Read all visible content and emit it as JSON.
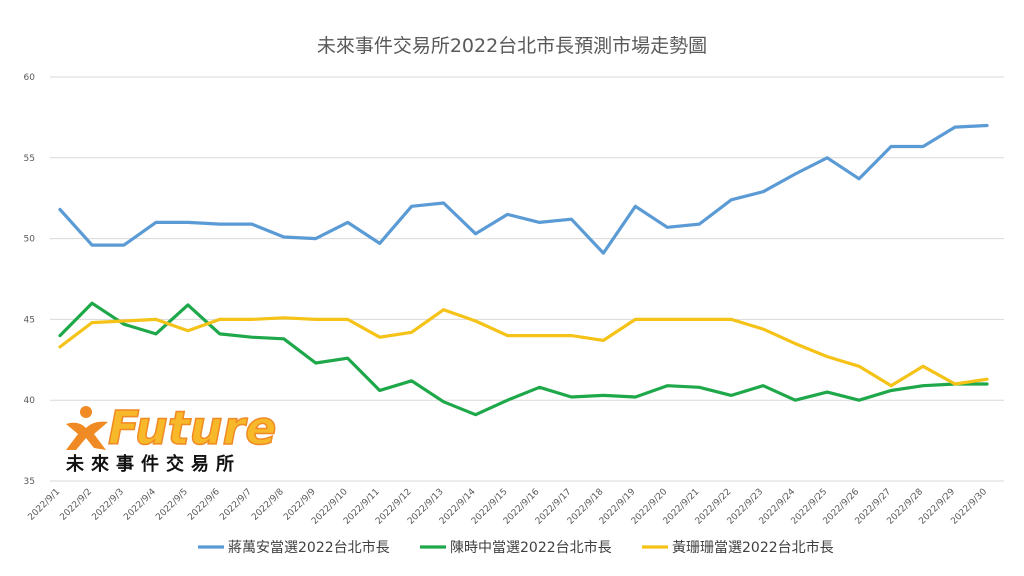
{
  "chart_data": {
    "type": "line",
    "title": "未來事件交易所2022台北市長預測市場走勢圖",
    "xlabel": "",
    "ylabel": "",
    "ylim": [
      35,
      60
    ],
    "yticks": [
      35,
      40,
      45,
      50,
      55,
      60
    ],
    "grid": true,
    "legend_position": "bottom",
    "categories": [
      "2022/9/1",
      "2022/9/2",
      "2022/9/3",
      "2022/9/4",
      "2022/9/5",
      "2022/9/6",
      "2022/9/7",
      "2022/9/8",
      "2022/9/9",
      "2022/9/10",
      "2022/9/11",
      "2022/9/12",
      "2022/9/13",
      "2022/9/14",
      "2022/9/15",
      "2022/9/16",
      "2022/9/17",
      "2022/9/18",
      "2022/9/19",
      "2022/9/20",
      "2022/9/21",
      "2022/9/22",
      "2022/9/23",
      "2022/9/24",
      "2022/9/25",
      "2022/9/26",
      "2022/9/27",
      "2022/9/28",
      "2022/9/29",
      "2022/9/30"
    ],
    "series": [
      {
        "name": "蔣萬安當選2022台北市長",
        "color": "#5b9bd5",
        "values": [
          51.8,
          49.6,
          49.6,
          51.0,
          51.0,
          50.9,
          50.9,
          50.1,
          50.0,
          51.0,
          49.7,
          52.0,
          52.2,
          50.3,
          51.5,
          51.0,
          51.2,
          49.1,
          52.0,
          50.7,
          50.9,
          52.4,
          52.9,
          54.0,
          55.0,
          53.7,
          55.7,
          55.7,
          56.9,
          57.0
        ]
      },
      {
        "name": "陳時中當選2022台北市長",
        "color": "#1ea84a",
        "values": [
          44.0,
          46.0,
          44.7,
          44.1,
          45.9,
          44.1,
          43.9,
          43.8,
          42.3,
          42.6,
          40.6,
          41.2,
          39.9,
          39.1,
          40.0,
          40.8,
          40.2,
          40.3,
          40.2,
          40.9,
          40.8,
          40.3,
          40.9,
          40.0,
          40.5,
          40.0,
          40.6,
          40.9,
          41.0,
          41.0
        ]
      },
      {
        "name": "黃珊珊當選2022台北市長",
        "color": "#f5c218",
        "values": [
          43.3,
          44.8,
          44.9,
          45.0,
          44.3,
          45.0,
          45.0,
          45.1,
          45.0,
          45.0,
          43.9,
          44.2,
          45.6,
          44.9,
          44.0,
          44.0,
          44.0,
          43.7,
          45.0,
          45.0,
          45.0,
          45.0,
          44.4,
          43.5,
          42.7,
          42.1,
          40.9,
          42.1,
          41.0,
          41.3
        ]
      }
    ]
  },
  "logo": {
    "word": "Future",
    "subtitle": "未來事件交易所",
    "orange": "#f08a24",
    "gold": "#f7b82a"
  }
}
